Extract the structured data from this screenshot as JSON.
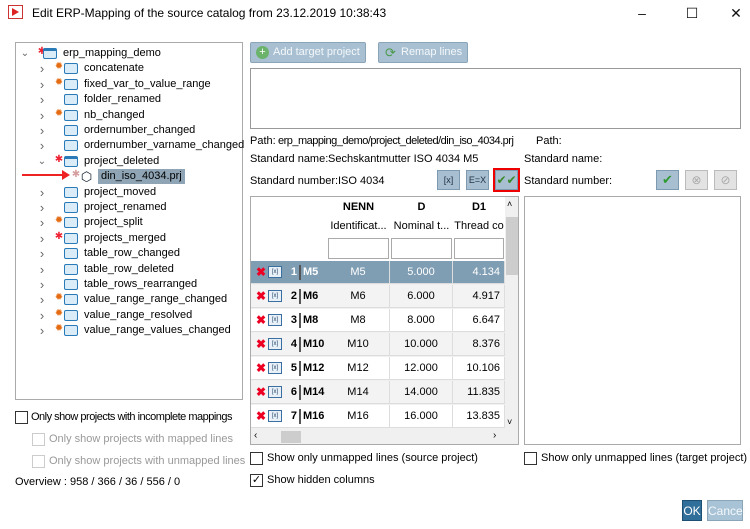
{
  "window": {
    "title": "Edit ERP-Mapping of the source catalog from 23.12.2019 10:38:43",
    "minimize": "–",
    "maximize": "☐",
    "close": "✕"
  },
  "tree": {
    "items": [
      {
        "label": "erp_mapping_demo",
        "level": 0,
        "chevron": "down",
        "marker": "star",
        "icon": "folder-open"
      },
      {
        "label": "concatenate",
        "level": 1,
        "chevron": "right",
        "marker": "gear",
        "icon": "folder"
      },
      {
        "label": "fixed_var_to_value_range",
        "level": 1,
        "chevron": "right",
        "marker": "gear",
        "icon": "folder"
      },
      {
        "label": "folder_renamed",
        "level": 1,
        "chevron": "right",
        "marker": "none",
        "icon": "folder"
      },
      {
        "label": "nb_changed",
        "level": 1,
        "chevron": "right",
        "marker": "gear",
        "icon": "folder"
      },
      {
        "label": "ordernumber_changed",
        "level": 1,
        "chevron": "right",
        "marker": "none",
        "icon": "folder"
      },
      {
        "label": "ordernumber_varname_changed",
        "level": 1,
        "chevron": "right",
        "marker": "none",
        "icon": "folder"
      },
      {
        "label": "project_deleted",
        "level": 1,
        "chevron": "down",
        "marker": "star",
        "icon": "folder-open"
      },
      {
        "label": "din_iso_4034.prj",
        "level": 2,
        "chevron": "none",
        "marker": "star-faded",
        "icon": "cube",
        "selected": true
      },
      {
        "label": "project_moved",
        "level": 1,
        "chevron": "right",
        "marker": "none",
        "icon": "folder"
      },
      {
        "label": "project_renamed",
        "level": 1,
        "chevron": "right",
        "marker": "none",
        "icon": "folder"
      },
      {
        "label": "project_split",
        "level": 1,
        "chevron": "right",
        "marker": "gear",
        "icon": "folder"
      },
      {
        "label": "projects_merged",
        "level": 1,
        "chevron": "right",
        "marker": "star",
        "icon": "folder"
      },
      {
        "label": "table_row_changed",
        "level": 1,
        "chevron": "right",
        "marker": "none",
        "icon": "folder"
      },
      {
        "label": "table_row_deleted",
        "level": 1,
        "chevron": "right",
        "marker": "none",
        "icon": "folder"
      },
      {
        "label": "table_rows_rearranged",
        "level": 1,
        "chevron": "right",
        "marker": "none",
        "icon": "folder"
      },
      {
        "label": "value_range_range_changed",
        "level": 1,
        "chevron": "right",
        "marker": "gear",
        "icon": "folder"
      },
      {
        "label": "value_range_resolved",
        "level": 1,
        "chevron": "right",
        "marker": "gear",
        "icon": "folder"
      },
      {
        "label": "value_range_values_changed",
        "level": 1,
        "chevron": "right",
        "marker": "gear",
        "icon": "folder"
      }
    ]
  },
  "toolbar": {
    "add_target": "Add target project",
    "remap": "Remap lines"
  },
  "source": {
    "path_label": "Path:",
    "path": "erp_mapping_demo/project_deleted/din_iso_4034.prj",
    "stdname_label": "Standard name:",
    "stdname": "Sechskantmutter ISO 4034 M5",
    "stdnum_label": "Standard number:",
    "stdnum": "ISO 4034"
  },
  "target": {
    "path_label": "Path:",
    "stdname_label": "Standard name:",
    "stdnum_label": "Standard number:"
  },
  "grid": {
    "columns": [
      {
        "name": "NENN",
        "desc": "Identificat..."
      },
      {
        "name": "D",
        "desc": "Nominal t..."
      },
      {
        "name": "D1",
        "desc": "Thread co"
      }
    ],
    "rows": [
      {
        "n": "1",
        "key": "M5",
        "cells": [
          "M5",
          "5.000",
          "4.134"
        ],
        "selected": true
      },
      {
        "n": "2",
        "key": "M6",
        "cells": [
          "M6",
          "6.000",
          "4.917"
        ]
      },
      {
        "n": "3",
        "key": "M8",
        "cells": [
          "M8",
          "8.000",
          "6.647"
        ]
      },
      {
        "n": "4",
        "key": "M10",
        "cells": [
          "M10",
          "10.000",
          "8.376"
        ]
      },
      {
        "n": "5",
        "key": "M12",
        "cells": [
          "M12",
          "12.000",
          "10.106"
        ]
      },
      {
        "n": "6",
        "key": "M14",
        "cells": [
          "M14",
          "14.000",
          "11.835"
        ]
      },
      {
        "n": "7",
        "key": "M16",
        "cells": [
          "M16",
          "16.000",
          "13.835"
        ]
      }
    ]
  },
  "filters": {
    "incomplete": {
      "label": "Only show projects with incomplete mappings",
      "checked": false
    },
    "mapped": {
      "label": "Only show projects with mapped lines",
      "checked": false,
      "disabled": true
    },
    "unmapped": {
      "label": "Only show projects with unmapped lines",
      "checked": false,
      "disabled": true
    },
    "overview": "Overview : 958 / 366 / 36 / 556 / 0",
    "src_unmapped": {
      "label": "Show only unmapped lines (source project)",
      "checked": false
    },
    "hidden_cols": {
      "label": "Show hidden columns",
      "checked": true,
      "mark": "✓"
    },
    "tgt_unmapped": {
      "label": "Show only unmapped lines (target project)",
      "checked": false
    }
  },
  "footer": {
    "ok": "OK",
    "cancel": "Cancel"
  },
  "colors": {
    "accent": "#2f6f9a",
    "selected_row": "#7f9db3",
    "highlight": "#ff0000",
    "gear": "#e46b12"
  }
}
